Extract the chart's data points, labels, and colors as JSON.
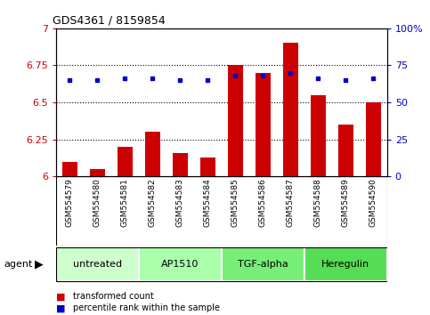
{
  "title": "GDS4361 / 8159854",
  "samples": [
    "GSM554579",
    "GSM554580",
    "GSM554581",
    "GSM554582",
    "GSM554583",
    "GSM554584",
    "GSM554585",
    "GSM554586",
    "GSM554587",
    "GSM554588",
    "GSM554589",
    "GSM554590"
  ],
  "bar_values": [
    6.1,
    6.05,
    6.2,
    6.3,
    6.16,
    6.13,
    6.75,
    6.7,
    6.9,
    6.55,
    6.35,
    6.5
  ],
  "dot_values_pct": [
    65,
    65,
    66,
    66,
    65,
    65,
    68,
    68,
    70,
    66,
    65,
    66
  ],
  "bar_color": "#cc0000",
  "dot_color": "#0000cc",
  "ylim": [
    6.0,
    7.0
  ],
  "y2lim": [
    0,
    100
  ],
  "yticks": [
    6.0,
    6.25,
    6.5,
    6.75,
    7.0
  ],
  "ytick_labels": [
    "6",
    "6.25",
    "6.5",
    "6.75",
    "7"
  ],
  "y2ticks": [
    0,
    25,
    50,
    75,
    100
  ],
  "y2tick_labels": [
    "0",
    "25",
    "50",
    "75",
    "100%"
  ],
  "groups": [
    {
      "label": "untreated",
      "start": 0,
      "end": 3,
      "color": "#ccffcc"
    },
    {
      "label": "AP1510",
      "start": 3,
      "end": 6,
      "color": "#aaffaa"
    },
    {
      "label": "TGF-alpha",
      "start": 6,
      "end": 9,
      "color": "#77ee77"
    },
    {
      "label": "Heregulin",
      "start": 9,
      "end": 12,
      "color": "#55dd55"
    }
  ],
  "agent_label": "agent",
  "legend_bar": "transformed count",
  "legend_dot": "percentile rank within the sample",
  "bar_width": 0.55,
  "bg_color": "#ffffff",
  "plot_bg": "#ffffff",
  "tick_area_color": "#bbbbbb",
  "grid_yticks": [
    6.25,
    6.5,
    6.75
  ]
}
